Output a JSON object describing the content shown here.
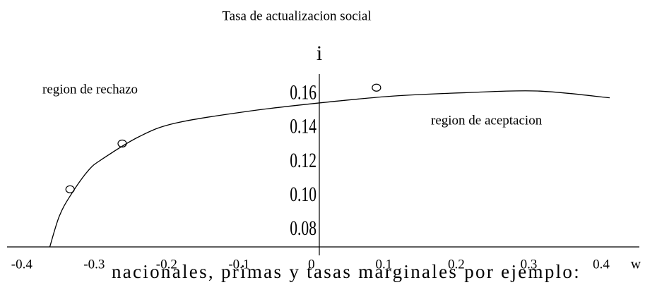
{
  "chart_data": {
    "type": "line",
    "title": "Tasa de actualizacion social",
    "x_label": "w",
    "y_label": "i",
    "annotations": [
      "region de rechazo",
      "region de aceptacion"
    ],
    "caption": "nacionales, primas y tasas marginales por ejemplo:",
    "x": [
      -0.373,
      -0.36,
      -0.345,
      -0.32,
      -0.3,
      -0.25,
      -0.2,
      -0.1,
      0,
      0.1,
      0.2,
      0.3,
      0.4
    ],
    "series": [
      {
        "color": "#000000",
        "values": [
          0.07,
          0.088,
          0.1,
          0.115,
          0.122,
          0.135,
          0.143,
          0.15,
          0.155,
          0.159,
          0.161,
          0.162,
          0.158
        ]
      }
    ],
    "markers": {
      "x": [
        -0.345,
        -0.273,
        0.078
      ],
      "values": [
        0.104,
        0.131,
        0.164
      ]
    },
    "xlim": [
      -0.432,
      0.441
    ],
    "ylim": [
      0.07,
      0.172
    ],
    "xticks": [
      -0.4,
      -0.3,
      -0.2,
      -0.1,
      0,
      0.1,
      0.2,
      0.3,
      0.4
    ],
    "yticks": [
      {
        "value": 0.08,
        "label": "0.08"
      },
      {
        "value": 0.1,
        "label": "0.10"
      },
      0.12,
      0.14,
      0.16
    ]
  }
}
